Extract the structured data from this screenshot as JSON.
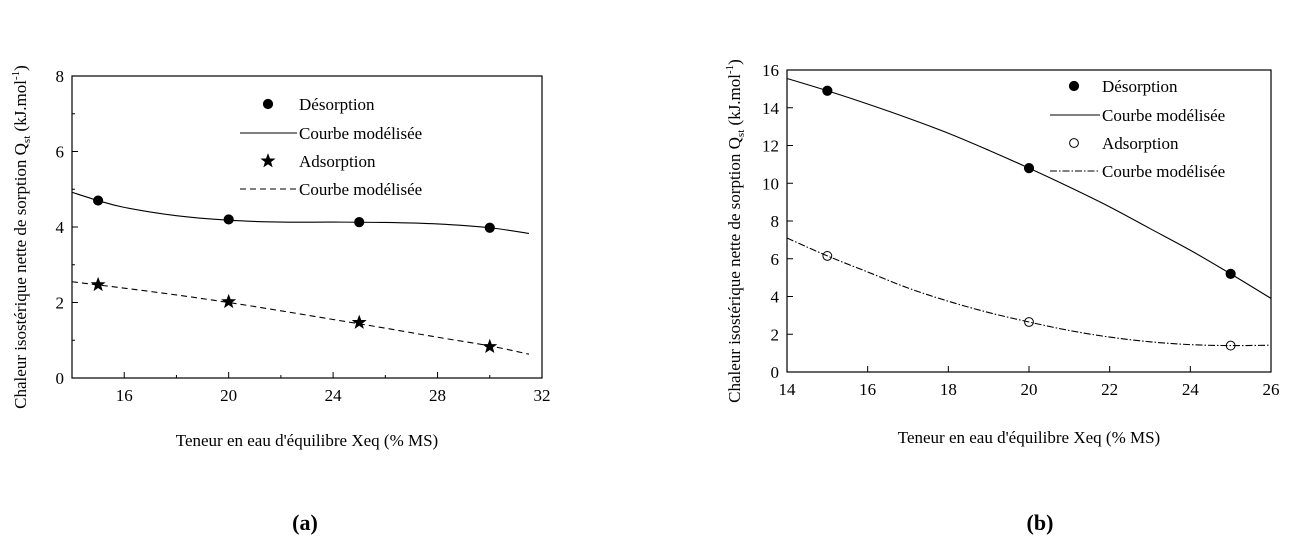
{
  "chart_data": [
    {
      "type": "line",
      "panel_label": "(a)",
      "xlabel": "Teneur en eau d'équilibre Xeq (% MS)",
      "ylabel": "Chaleur isostérique nette de sorption Q",
      "ylabel_sub": "st",
      "ylabel_unit_pre": " (kJ.mol",
      "ylabel_unit_sup": "-1",
      "ylabel_unit_post": ")",
      "xlim": [
        14,
        32
      ],
      "ylim": [
        0,
        8
      ],
      "xticks": [
        16,
        20,
        24,
        28,
        32
      ],
      "yticks": [
        0,
        2,
        4,
        6,
        8
      ],
      "grid": false,
      "legend_position": "top-right",
      "series": [
        {
          "name": "Désorption",
          "marker": "filled-circle",
          "x": [
            15,
            20,
            25,
            30
          ],
          "y": [
            4.7,
            4.2,
            4.13,
            3.98
          ]
        },
        {
          "name": "Courbe modélisée",
          "line": "solid",
          "x": [
            14,
            15,
            16,
            18,
            20,
            22,
            24,
            26,
            28,
            30,
            31.5
          ],
          "y": [
            4.92,
            4.7,
            4.52,
            4.3,
            4.18,
            4.13,
            4.13,
            4.12,
            4.08,
            3.98,
            3.83
          ]
        },
        {
          "name": "Adsorption",
          "marker": "star",
          "x": [
            15,
            20,
            25,
            30
          ],
          "y": [
            2.47,
            2.02,
            1.47,
            0.83
          ]
        },
        {
          "name": "Courbe modélisée",
          "line": "dashed",
          "x": [
            14,
            16,
            18,
            20,
            22,
            24,
            26,
            28,
            30,
            31.5
          ],
          "y": [
            2.55,
            2.38,
            2.2,
            2.0,
            1.78,
            1.55,
            1.32,
            1.08,
            0.85,
            0.63
          ]
        }
      ]
    },
    {
      "type": "line",
      "panel_label": "(b)",
      "xlabel": "Teneur en eau d'équilibre Xeq (% MS)",
      "ylabel": "Chaleur isostérique nette de sorption Q",
      "ylabel_sub": "st",
      "ylabel_unit_pre": " (kJ.mol",
      "ylabel_unit_sup": "-1",
      "ylabel_unit_post": ")",
      "xlim": [
        14,
        26
      ],
      "ylim": [
        0,
        16
      ],
      "xticks": [
        14,
        16,
        18,
        20,
        22,
        24,
        26
      ],
      "yticks": [
        0,
        2,
        4,
        6,
        8,
        10,
        12,
        14,
        16
      ],
      "grid": false,
      "legend_position": "top-right",
      "series": [
        {
          "name": "Désorption",
          "marker": "filled-circle",
          "x": [
            15,
            20,
            25
          ],
          "y": [
            14.9,
            10.8,
            5.2
          ]
        },
        {
          "name": "Courbe modélisée",
          "line": "solid",
          "x": [
            14,
            15,
            16,
            17,
            18,
            19,
            20,
            21,
            22,
            23,
            24,
            25,
            26
          ],
          "y": [
            15.55,
            14.9,
            14.2,
            13.45,
            12.65,
            11.75,
            10.8,
            9.8,
            8.75,
            7.6,
            6.45,
            5.2,
            3.9
          ]
        },
        {
          "name": "Adsorption",
          "marker": "open-circle",
          "x": [
            15,
            20,
            25
          ],
          "y": [
            6.15,
            2.65,
            1.4
          ]
        },
        {
          "name": "Courbe modélisée",
          "line": "dash-dot",
          "x": [
            14,
            15,
            16,
            17,
            18,
            19,
            20,
            21,
            22,
            23,
            24,
            25,
            26
          ],
          "y": [
            7.1,
            6.15,
            5.3,
            4.45,
            3.75,
            3.15,
            2.65,
            2.2,
            1.85,
            1.6,
            1.45,
            1.4,
            1.42
          ]
        }
      ]
    }
  ]
}
